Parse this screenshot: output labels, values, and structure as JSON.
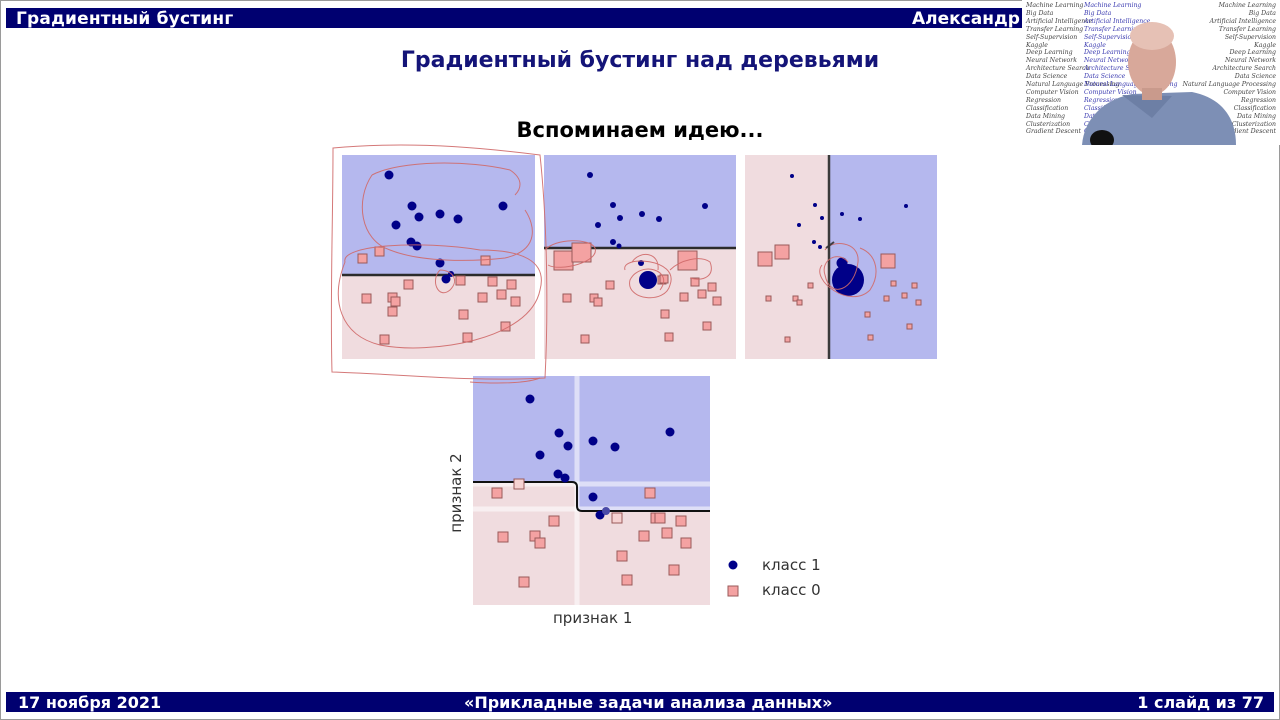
{
  "header": {
    "left_title": "Градиентный бустинг",
    "right_author": "Александр Д"
  },
  "slide": {
    "title": "Градиентный бустинг над деревьями",
    "subtitle": "Вспоминаем идею..."
  },
  "figure": {
    "xlabel": "признак 1",
    "ylabel": "признак 2",
    "legend": [
      {
        "label": "класс 1",
        "marker": "circle",
        "color": "#000088"
      },
      {
        "label": "класс 0",
        "marker": "square",
        "color": "#f4a2a2"
      }
    ]
  },
  "colors": {
    "bar_bg": "#000070",
    "title_color": "#141478",
    "region_class1": "#b5b8ee",
    "region_class0": "#f0dcdf",
    "point_class1": "#000088",
    "point_class0": "#f4a2a2",
    "annotation_ink": "#d06a6a"
  },
  "webcam": {
    "tags_left": [
      "Machine Learning",
      "Big Data",
      "Artificial Intelligence",
      "Transfer Learning",
      "Self-Supervision",
      "Kaggle",
      "Deep Learning",
      "Neural Network",
      "Architecture Search",
      "Data Science",
      "Natural Language Processing",
      "Computer Vision",
      "Regression",
      "Classification",
      "Data Mining",
      "Clusterization",
      "Gradient Descent"
    ],
    "tags_right": [
      "Machine Learning",
      "Big Data",
      "Artificial Intelligence",
      "Transfer Learning",
      "Self-Supervision",
      "Kaggle",
      "Deep Learning",
      "Neural Network",
      "Architecture Search",
      "Data Science",
      "Natural Language Processing",
      "Computer Vision",
      "Regression",
      "Classification",
      "Data Mining",
      "Clusterization",
      "Gradient Descent"
    ]
  },
  "footer": {
    "date": "17 ноября 2021",
    "course": "«Прикладные задачи анализа данных»",
    "slide_counter": "1 слайд из 77"
  }
}
